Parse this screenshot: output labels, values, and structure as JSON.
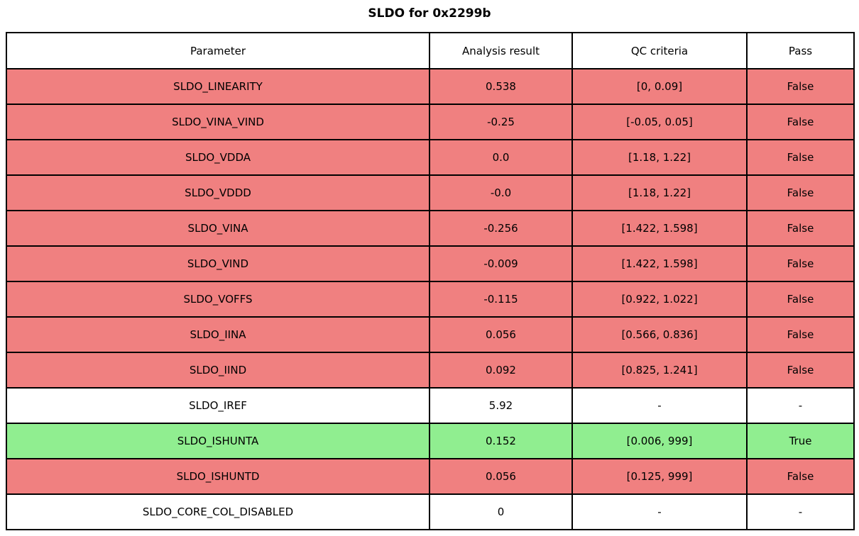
{
  "title": "SLDO for 0x2299b",
  "colors": {
    "fail": "#f08080",
    "pass": "#90ee90",
    "none": "#ffffff",
    "border": "#000000"
  },
  "chart_data": {
    "type": "table",
    "title": "SLDO for 0x2299b",
    "columns": [
      "Parameter",
      "Analysis result",
      "QC criteria",
      "Pass"
    ],
    "rows": [
      {
        "parameter": "SLDO_LINEARITY",
        "analysis_result": "0.538",
        "qc_criteria": "[0, 0.09]",
        "pass": "False",
        "status": "fail"
      },
      {
        "parameter": "SLDO_VINA_VIND",
        "analysis_result": "-0.25",
        "qc_criteria": "[-0.05, 0.05]",
        "pass": "False",
        "status": "fail"
      },
      {
        "parameter": "SLDO_VDDA",
        "analysis_result": "0.0",
        "qc_criteria": "[1.18, 1.22]",
        "pass": "False",
        "status": "fail"
      },
      {
        "parameter": "SLDO_VDDD",
        "analysis_result": "-0.0",
        "qc_criteria": "[1.18, 1.22]",
        "pass": "False",
        "status": "fail"
      },
      {
        "parameter": "SLDO_VINA",
        "analysis_result": "-0.256",
        "qc_criteria": "[1.422, 1.598]",
        "pass": "False",
        "status": "fail"
      },
      {
        "parameter": "SLDO_VIND",
        "analysis_result": "-0.009",
        "qc_criteria": "[1.422, 1.598]",
        "pass": "False",
        "status": "fail"
      },
      {
        "parameter": "SLDO_VOFFS",
        "analysis_result": "-0.115",
        "qc_criteria": "[0.922, 1.022]",
        "pass": "False",
        "status": "fail"
      },
      {
        "parameter": "SLDO_IINA",
        "analysis_result": "0.056",
        "qc_criteria": "[0.566, 0.836]",
        "pass": "False",
        "status": "fail"
      },
      {
        "parameter": "SLDO_IIND",
        "analysis_result": "0.092",
        "qc_criteria": "[0.825, 1.241]",
        "pass": "False",
        "status": "fail"
      },
      {
        "parameter": "SLDO_IREF",
        "analysis_result": "5.92",
        "qc_criteria": "-",
        "pass": "-",
        "status": "none"
      },
      {
        "parameter": "SLDO_ISHUNTA",
        "analysis_result": "0.152",
        "qc_criteria": "[0.006, 999]",
        "pass": "True",
        "status": "pass"
      },
      {
        "parameter": "SLDO_ISHUNTD",
        "analysis_result": "0.056",
        "qc_criteria": "[0.125, 999]",
        "pass": "False",
        "status": "fail"
      },
      {
        "parameter": "SLDO_CORE_COL_DISABLED",
        "analysis_result": "0",
        "qc_criteria": "-",
        "pass": "-",
        "status": "none"
      }
    ]
  }
}
